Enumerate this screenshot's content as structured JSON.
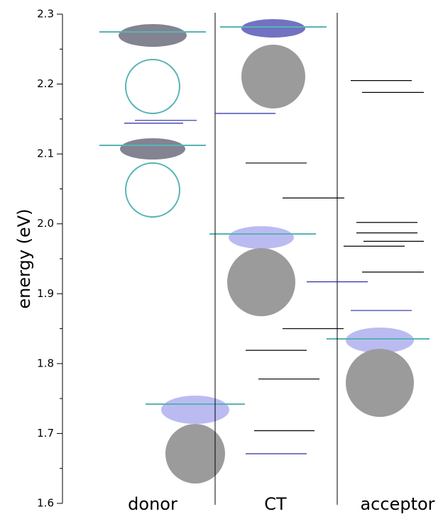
{
  "chart_data": {
    "type": "energy-level",
    "ylabel": "energy (eV)",
    "ylim": [
      1.6,
      2.3
    ],
    "yticks": [
      1.6,
      1.7,
      1.8,
      1.9,
      {
        "value": 2,
        "label": "2.0"
      },
      2.1,
      2.2,
      2.3
    ],
    "yminorticks": [
      1.65,
      1.75,
      1.85,
      1.95,
      2.05,
      2.15,
      2.25
    ],
    "categories": [
      "donor",
      "CT",
      "acceptor"
    ],
    "levels": [
      {
        "energies": [
          2.148,
          2.144
        ],
        "colors": [
          "#2a2aa8",
          "#2a2aa8"
        ]
      },
      {
        "energies": [
          2.158,
          2.087,
          2.037,
          1.917,
          1.85,
          1.819,
          1.778,
          1.704,
          1.671
        ],
        "colors": [
          "#2a2aa8",
          "#000000",
          "#000000",
          "#2a2aa8",
          "#000000",
          "#000000",
          "#000000",
          "#000000",
          "#2a2aa8"
        ]
      },
      {
        "energies": [
          2.205,
          2.188,
          2.002,
          1.987,
          1.975,
          1.968,
          1.931,
          1.876
        ],
        "colors": [
          "#000000",
          "#000000",
          "#000000",
          "#000000",
          "#000000",
          "#000000",
          "#000000",
          "#2a2aa8"
        ]
      }
    ]
  }
}
